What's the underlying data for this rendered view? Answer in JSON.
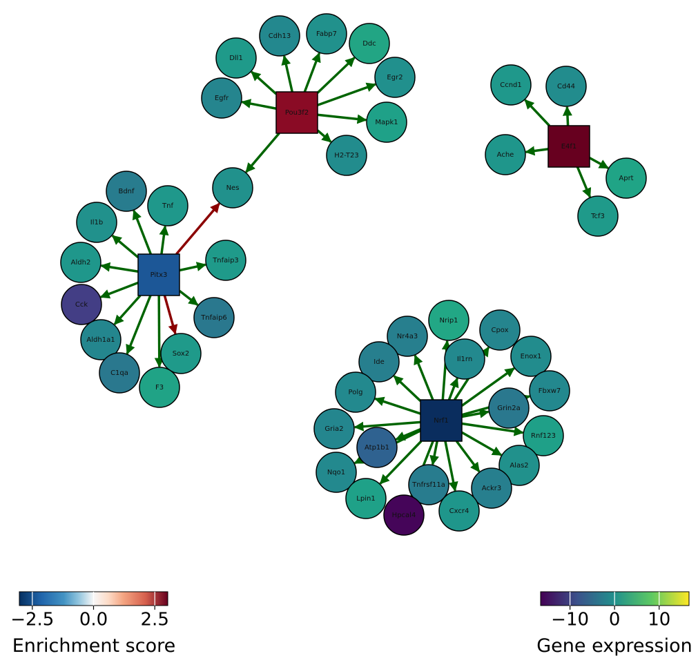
{
  "nodes": [
    {
      "label": "Pou3f2",
      "shape": "square",
      "color": "#8a0b25"
    },
    {
      "label": "Dll1",
      "shape": "circle",
      "color": "#1f9a8a"
    },
    {
      "label": "Cdh13",
      "shape": "circle",
      "color": "#23888e"
    },
    {
      "label": "Fabp7",
      "shape": "circle",
      "color": "#21918c"
    },
    {
      "label": "Ddc",
      "shape": "circle",
      "color": "#22a584"
    },
    {
      "label": "Egr2",
      "shape": "circle",
      "color": "#21908d"
    },
    {
      "label": "Egfr",
      "shape": "circle",
      "color": "#25858e"
    },
    {
      "label": "Mapk1",
      "shape": "circle",
      "color": "#1fa188"
    },
    {
      "label": "H2-T23",
      "shape": "circle",
      "color": "#228c8d"
    },
    {
      "label": "Nes",
      "shape": "circle",
      "color": "#21918c"
    },
    {
      "label": "E4f1",
      "shape": "square",
      "color": "#67001f"
    },
    {
      "label": "Ccnd1",
      "shape": "circle",
      "color": "#1f988b"
    },
    {
      "label": "Cd44",
      "shape": "circle",
      "color": "#228c8d"
    },
    {
      "label": "Ache",
      "shape": "circle",
      "color": "#1f968b"
    },
    {
      "label": "Aprt",
      "shape": "circle",
      "color": "#20a486"
    },
    {
      "label": "Tcf3",
      "shape": "circle",
      "color": "#1f9a8a"
    },
    {
      "label": "Pitx3",
      "shape": "square",
      "color": "#1c5797"
    },
    {
      "label": "Bdnf",
      "shape": "circle",
      "color": "#287c8e"
    },
    {
      "label": "Tnf",
      "shape": "circle",
      "color": "#1f988b"
    },
    {
      "label": "Il1b",
      "shape": "circle",
      "color": "#21918c"
    },
    {
      "label": "Aldh2",
      "shape": "circle",
      "color": "#1f978b"
    },
    {
      "label": "Tnfaip3",
      "shape": "circle",
      "color": "#1f9a8a"
    },
    {
      "label": "Cck",
      "shape": "circle",
      "color": "#433e85"
    },
    {
      "label": "Tnfaip6",
      "shape": "circle",
      "color": "#2a788e"
    },
    {
      "label": "Aldh1a1",
      "shape": "circle",
      "color": "#24868e"
    },
    {
      "label": "Sox2",
      "shape": "circle",
      "color": "#1f9a8a"
    },
    {
      "label": "C1qa",
      "shape": "circle",
      "color": "#2a788e"
    },
    {
      "label": "F3",
      "shape": "circle",
      "color": "#20a386"
    },
    {
      "label": "Nrf1",
      "shape": "square",
      "color": "#0a2d5e"
    },
    {
      "label": "Nrip1",
      "shape": "circle",
      "color": "#22a785"
    },
    {
      "label": "Nr4a3",
      "shape": "circle",
      "color": "#277f8e"
    },
    {
      "label": "Cpox",
      "shape": "circle",
      "color": "#25858e"
    },
    {
      "label": "Il1rn",
      "shape": "circle",
      "color": "#23898e"
    },
    {
      "label": "Ide",
      "shape": "circle",
      "color": "#277f8e"
    },
    {
      "label": "Enox1",
      "shape": "circle",
      "color": "#228c8d"
    },
    {
      "label": "Fbxw7",
      "shape": "circle",
      "color": "#23888e"
    },
    {
      "label": "Polg",
      "shape": "circle",
      "color": "#23898e"
    },
    {
      "label": "Grin2a",
      "shape": "circle",
      "color": "#2a788e"
    },
    {
      "label": "Gria2",
      "shape": "circle",
      "color": "#24868e"
    },
    {
      "label": "Rnf123",
      "shape": "circle",
      "color": "#1fa088"
    },
    {
      "label": "Atp1b1",
      "shape": "circle",
      "color": "#2f6290"
    },
    {
      "label": "Alas2",
      "shape": "circle",
      "color": "#21918c"
    },
    {
      "label": "Nqo1",
      "shape": "circle",
      "color": "#23898e"
    },
    {
      "label": "Tnfrsf11a",
      "shape": "circle",
      "color": "#287c8e"
    },
    {
      "label": "Ackr3",
      "shape": "circle",
      "color": "#277f8e"
    },
    {
      "label": "Lpin1",
      "shape": "circle",
      "color": "#1fa188"
    },
    {
      "label": "Hpcal4",
      "shape": "circle",
      "color": "#450559"
    },
    {
      "label": "Cxcr4",
      "shape": "circle",
      "color": "#1f968b"
    }
  ],
  "edges": [
    {
      "from": 0,
      "to": 1,
      "color": "#006400"
    },
    {
      "from": 0,
      "to": 2,
      "color": "#006400"
    },
    {
      "from": 0,
      "to": 3,
      "color": "#006400"
    },
    {
      "from": 0,
      "to": 4,
      "color": "#006400"
    },
    {
      "from": 0,
      "to": 5,
      "color": "#006400"
    },
    {
      "from": 0,
      "to": 6,
      "color": "#006400"
    },
    {
      "from": 0,
      "to": 7,
      "color": "#006400"
    },
    {
      "from": 0,
      "to": 8,
      "color": "#006400"
    },
    {
      "from": 0,
      "to": 9,
      "color": "#006400"
    },
    {
      "from": 10,
      "to": 11,
      "color": "#006400"
    },
    {
      "from": 10,
      "to": 12,
      "color": "#006400"
    },
    {
      "from": 10,
      "to": 13,
      "color": "#006400"
    },
    {
      "from": 10,
      "to": 14,
      "color": "#006400"
    },
    {
      "from": 10,
      "to": 15,
      "color": "#006400"
    },
    {
      "from": 16,
      "to": 9,
      "color": "#8b0000"
    },
    {
      "from": 16,
      "to": 17,
      "color": "#006400"
    },
    {
      "from": 16,
      "to": 18,
      "color": "#006400"
    },
    {
      "from": 16,
      "to": 19,
      "color": "#006400"
    },
    {
      "from": 16,
      "to": 20,
      "color": "#006400"
    },
    {
      "from": 16,
      "to": 21,
      "color": "#006400"
    },
    {
      "from": 16,
      "to": 22,
      "color": "#006400"
    },
    {
      "from": 16,
      "to": 23,
      "color": "#006400"
    },
    {
      "from": 16,
      "to": 24,
      "color": "#006400"
    },
    {
      "from": 16,
      "to": 25,
      "color": "#8b0000"
    },
    {
      "from": 16,
      "to": 26,
      "color": "#006400"
    },
    {
      "from": 16,
      "to": 27,
      "color": "#006400"
    },
    {
      "from": 28,
      "to": 29,
      "color": "#006400"
    },
    {
      "from": 28,
      "to": 30,
      "color": "#006400"
    },
    {
      "from": 28,
      "to": 31,
      "color": "#006400"
    },
    {
      "from": 28,
      "to": 32,
      "color": "#006400"
    },
    {
      "from": 28,
      "to": 33,
      "color": "#006400"
    },
    {
      "from": 28,
      "to": 34,
      "color": "#006400"
    },
    {
      "from": 28,
      "to": 35,
      "color": "#006400"
    },
    {
      "from": 28,
      "to": 36,
      "color": "#006400"
    },
    {
      "from": 28,
      "to": 37,
      "color": "#006400"
    },
    {
      "from": 28,
      "to": 38,
      "color": "#006400"
    },
    {
      "from": 28,
      "to": 39,
      "color": "#006400"
    },
    {
      "from": 28,
      "to": 40,
      "color": "#006400"
    },
    {
      "from": 28,
      "to": 41,
      "color": "#006400"
    },
    {
      "from": 28,
      "to": 42,
      "color": "#006400"
    },
    {
      "from": 28,
      "to": 43,
      "color": "#006400"
    },
    {
      "from": 28,
      "to": 44,
      "color": "#006400"
    },
    {
      "from": 28,
      "to": 45,
      "color": "#006400"
    },
    {
      "from": 28,
      "to": 46,
      "color": "#006400"
    },
    {
      "from": 28,
      "to": 47,
      "color": "#006400"
    }
  ],
  "colorbars": [
    {
      "label": "Enrichment score",
      "lim": [
        -3.03,
        3.03
      ],
      "ticks": [
        {
          "value": -2.5,
          "label": "−2.5"
        },
        {
          "value": 0,
          "label": "0.0"
        },
        {
          "value": 2.5,
          "label": "2.5"
        }
      ]
    },
    {
      "label": "Gene expression",
      "lim": [
        -16.6,
        16.7
      ],
      "ticks": [
        {
          "value": -10,
          "label": "−10"
        },
        0,
        10
      ]
    }
  ]
}
